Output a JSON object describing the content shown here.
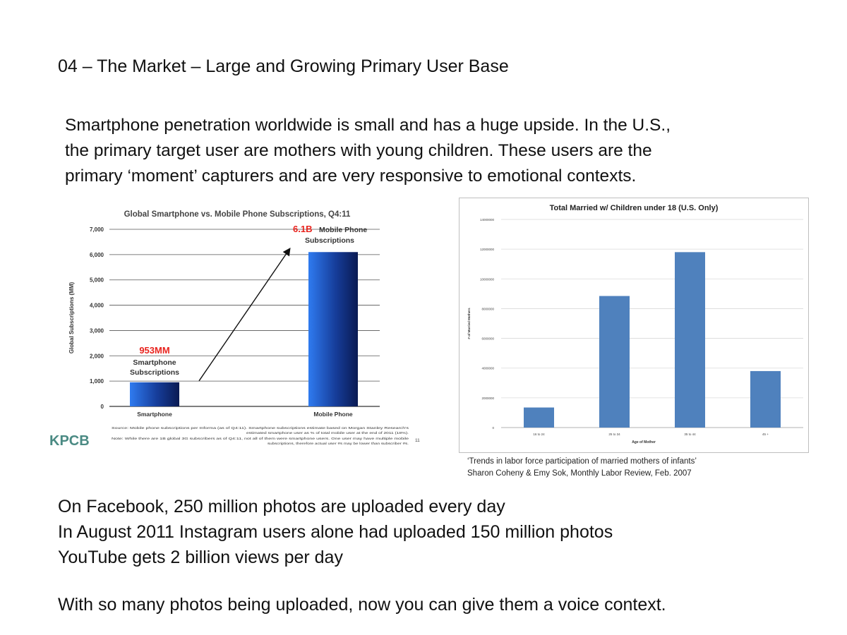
{
  "slide": {
    "title": "04 – The Market – Large and Growing Primary User Base",
    "intro_lines": [
      "Smartphone penetration worldwide is small and has a huge upside.  In the U.S.,",
      "the primary target user are mothers with young children.  These users are the",
      "primary ‘moment’ capturers and are very responsive to emotional contexts."
    ],
    "citation_lines": [
      "‘Trends in labor force participation of married mothers of infants’",
      "Sharon Coheny & Emy Sok, Monthly Labor Review, Feb. 2007"
    ],
    "stats_lines": [
      "On Facebook, 250 million photos are uploaded every day",
      "In August 2011 Instagram users alone had uploaded 150 million photos",
      "YouTube gets 2 billion views per day"
    ],
    "closing": "With so many photos being uploaded, now you can give them a voice context."
  },
  "chart_data": [
    {
      "type": "bar",
      "title": "Global Smartphone vs. Mobile Phone Subscriptions, Q4:11",
      "ylabel": "Global Subscriptions (MM)",
      "xlabel": "",
      "categories": [
        "Smartphone",
        "Mobile Phone"
      ],
      "values": [
        953,
        6100
      ],
      "ylim": [
        0,
        7000
      ],
      "yticks": [
        0,
        1000,
        2000,
        3000,
        4000,
        5000,
        6000,
        7000
      ],
      "ytick_labels": [
        "0",
        "1,000",
        "2,000",
        "3,000",
        "4,000",
        "5,000",
        "6,000",
        "7,000"
      ],
      "grid": true,
      "annotations": [
        {
          "value_text": "953MM",
          "lines": [
            "Smartphone",
            "Subscriptions"
          ]
        },
        {
          "value_text": "6.1B",
          "lines": [
            "Mobile Phone",
            "Subscriptions"
          ]
        }
      ],
      "source_lines": [
        "Source: Mobile phone subscriptions per Informa (as of Q4:11). Smartphone subscriptions estimate based on Morgan Stanley Research's",
        "estimated smartphone user as % of total mobile user at the end of 2011 (18%).",
        "Note: While there are 1B global 3G subscribers as of Q4:11, not all of them were smartphone users. One user may have multiple mobile",
        "subscriptions, therefore actual user #s may be lower than subscriber #s."
      ],
      "logo": "KPCB",
      "page_number": "11",
      "colors": {
        "bar_light": "#2f7bf0",
        "bar_dark": "#0a1a52",
        "highlight": "#e8231d"
      }
    },
    {
      "type": "bar",
      "title": "Total Married w/ Children under 18 (U.S. Only)",
      "ylabel": "# of Married Mothers",
      "xlabel": "Age of Mother",
      "categories": [
        "16 to 24",
        "25 to 34",
        "35 to 44",
        "45 +"
      ],
      "values": [
        1350000,
        8850000,
        11800000,
        3800000
      ],
      "ylim": [
        0,
        14000000
      ],
      "yticks": [
        0,
        2000000,
        4000000,
        6000000,
        8000000,
        10000000,
        12000000,
        14000000
      ],
      "ytick_labels": [
        "0",
        "2000000",
        "4000000",
        "6000000",
        "8000000",
        "10000000",
        "12000000",
        "14000000"
      ],
      "grid": true,
      "colors": {
        "bar": "#4f81bd",
        "grid": "#d9d9d9"
      }
    }
  ]
}
